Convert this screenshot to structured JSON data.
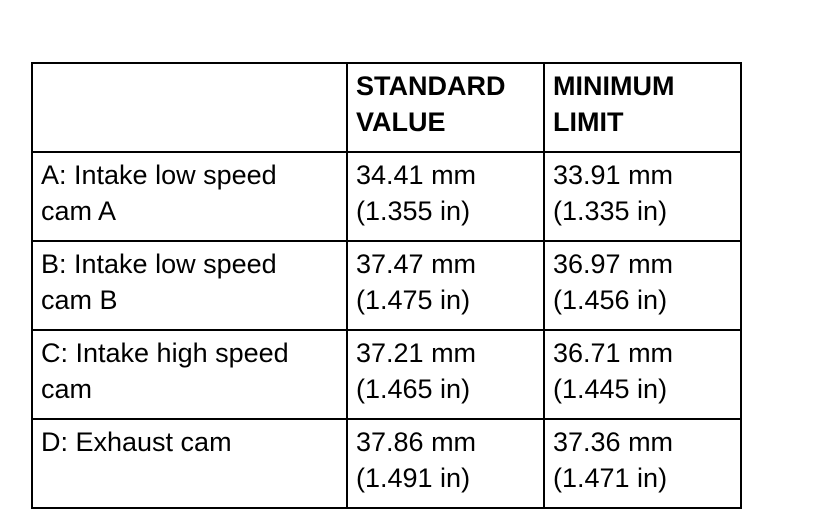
{
  "table": {
    "header": [
      [
        "STANDARD",
        "VALUE"
      ],
      [
        "MINIMUM",
        "LIMIT"
      ]
    ],
    "rows": [
      [
        [
          "A: Intake low speed",
          "cam A"
        ],
        [
          "34.41 mm",
          "(1.355 in)"
        ],
        [
          "33.91 mm",
          "(1.335 in)"
        ]
      ],
      [
        [
          "B: Intake low speed",
          "cam B"
        ],
        [
          "37.47 mm",
          "(1.475 in)"
        ],
        [
          "36.97 mm",
          "(1.456 in)"
        ]
      ],
      [
        [
          "C: Intake high speed",
          "cam"
        ],
        [
          "37.21 mm",
          "(1.465 in)"
        ],
        [
          "36.71 mm",
          "(1.445 in)"
        ]
      ],
      [
        [
          "D: Exhaust cam"
        ],
        [
          "37.86 mm",
          "(1.491 in)"
        ],
        [
          "37.36 mm",
          "(1.471 in)"
        ]
      ]
    ]
  }
}
